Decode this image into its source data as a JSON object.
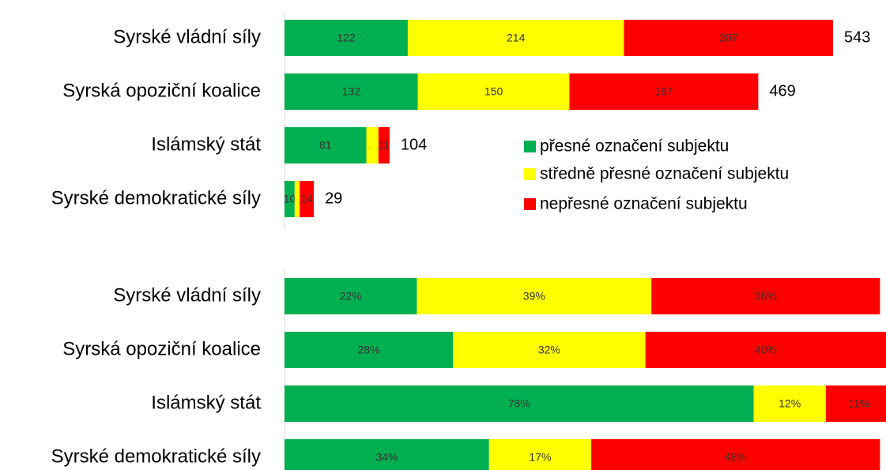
{
  "chart_data": [
    {
      "type": "stacked_bar",
      "orientation": "horizontal",
      "categories": [
        "Syrské vládní síly",
        "Syrská opoziční koalice",
        "Islámský stát",
        "Syrské demokratické síly"
      ],
      "series": [
        {
          "name": "přesné označení subjektu",
          "color": "#00b050",
          "values": [
            122,
            132,
            81,
            10
          ]
        },
        {
          "name": "středně přesné označení subjektu",
          "color": "#ffff00",
          "values": [
            214,
            150,
            12,
            5
          ],
          "value_labels": [
            "214",
            "150",
            null,
            null
          ]
        },
        {
          "name": "nepřesné označení subjektu",
          "color": "#ff0000",
          "values": [
            207,
            187,
            11,
            14
          ]
        }
      ],
      "totals": [
        543,
        469,
        104,
        29
      ],
      "xlim": [
        0,
        543
      ],
      "legend": "right"
    },
    {
      "type": "stacked_bar",
      "orientation": "horizontal",
      "categories": [
        "Syrské vládní síly",
        "Syrská opoziční koalice",
        "Islámský stát",
        "Syrské demokratické síly"
      ],
      "series": [
        {
          "color": "#00b050",
          "values": [
            22,
            28,
            78,
            34
          ],
          "value_labels": [
            "22%",
            "28%",
            "78%",
            "34%"
          ]
        },
        {
          "color": "#ffff00",
          "values": [
            39,
            32,
            12,
            17
          ],
          "value_labels": [
            "39%",
            "32%",
            "12%",
            "17%"
          ]
        },
        {
          "color": "#ff0000",
          "values": [
            38,
            40,
            11,
            48
          ],
          "value_labels": [
            "38%",
            "40%",
            "11%",
            "48%"
          ]
        }
      ],
      "xlim": [
        0,
        100
      ]
    }
  ]
}
